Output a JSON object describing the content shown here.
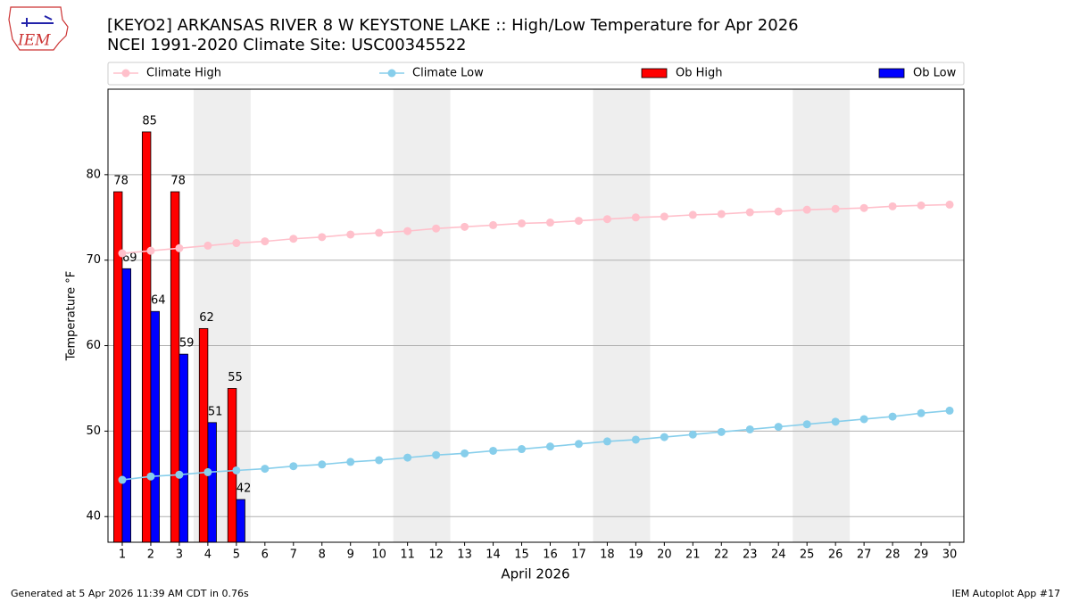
{
  "logo_text": "IEM",
  "footer_left": "Generated at 5 Apr 2026 11:39 AM CDT in 0.76s",
  "footer_right": "IEM Autoplot App #17",
  "chart_data": {
    "type": "bar",
    "title": "[KEYO2] ARKANSAS RIVER 8 W KEYSTONE LAKE :: High/Low Temperature for Apr 2026",
    "subtitle": "NCEI 1991-2020 Climate Site: USC00345522",
    "xlabel": "April 2026",
    "ylabel": "Temperature °F",
    "x": [
      1,
      2,
      3,
      4,
      5,
      6,
      7,
      8,
      9,
      10,
      11,
      12,
      13,
      14,
      15,
      16,
      17,
      18,
      19,
      20,
      21,
      22,
      23,
      24,
      25,
      26,
      27,
      28,
      29,
      30
    ],
    "xlim": [
      0.5,
      30.5
    ],
    "ylim": [
      37,
      90
    ],
    "yticks": [
      40,
      50,
      60,
      70,
      80
    ],
    "grid": true,
    "weekend_spans": [
      [
        3.5,
        5.5
      ],
      [
        10.5,
        12.5
      ],
      [
        17.5,
        19.5
      ],
      [
        24.5,
        26.5
      ]
    ],
    "series": [
      {
        "name": "Climate High",
        "type": "line",
        "color": "#ffc0cb",
        "values": [
          70.8,
          71.1,
          71.4,
          71.7,
          72.0,
          72.2,
          72.5,
          72.7,
          73.0,
          73.2,
          73.4,
          73.7,
          73.9,
          74.1,
          74.3,
          74.4,
          74.6,
          74.8,
          75.0,
          75.1,
          75.3,
          75.4,
          75.6,
          75.7,
          75.9,
          76.0,
          76.1,
          76.3,
          76.4,
          76.5
        ]
      },
      {
        "name": "Climate Low",
        "type": "line",
        "color": "#87ceeb",
        "values": [
          44.3,
          44.7,
          44.9,
          45.2,
          45.4,
          45.6,
          45.9,
          46.1,
          46.4,
          46.6,
          46.9,
          47.2,
          47.4,
          47.7,
          47.9,
          48.2,
          48.5,
          48.8,
          49.0,
          49.3,
          49.6,
          49.9,
          50.2,
          50.5,
          50.8,
          51.1,
          51.4,
          51.7,
          52.1,
          52.4
        ]
      },
      {
        "name": "Ob High",
        "type": "bar",
        "color": "#ff0000",
        "values": [
          78,
          85,
          78,
          62,
          55,
          null,
          null,
          null,
          null,
          null,
          null,
          null,
          null,
          null,
          null,
          null,
          null,
          null,
          null,
          null,
          null,
          null,
          null,
          null,
          null,
          null,
          null,
          null,
          null,
          null
        ]
      },
      {
        "name": "Ob Low",
        "type": "bar",
        "color": "#0000ff",
        "values": [
          69,
          64,
          59,
          51,
          42,
          null,
          null,
          null,
          null,
          null,
          null,
          null,
          null,
          null,
          null,
          null,
          null,
          null,
          null,
          null,
          null,
          null,
          null,
          null,
          null,
          null,
          null,
          null,
          null,
          null
        ]
      }
    ]
  }
}
